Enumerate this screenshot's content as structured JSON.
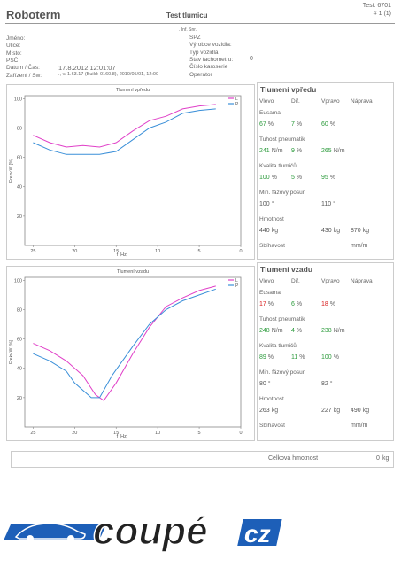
{
  "header": {
    "brand": "Roboterm",
    "title": "Test tlumicu",
    "test": "Test: 6701",
    "page": "# 1 (1)"
  },
  "info": {
    "left": [
      {
        "label": "Jméno:",
        "value": ""
      },
      {
        "label": "Ulice:",
        "value": ""
      },
      {
        "label": "Místo:",
        "value": ""
      },
      {
        "label": "PSČ",
        "value": ""
      },
      {
        "label": "Datum / Čas:",
        "value": "17.8.2012 12:01:07"
      },
      {
        "label": "Zařízení / Sw:",
        "value": "., v. 1.63.17 (Build: 0160.8), 2010/05/01, 12:00"
      }
    ],
    "note": ". Inf. Snr.",
    "right": [
      {
        "label": "SPZ",
        "value": ""
      },
      {
        "label": "Výrobce vozidla:",
        "value": ""
      },
      {
        "label": "Typ vozidla",
        "value": ""
      },
      {
        "label": "Stav tachometru:",
        "value": 0
      },
      {
        "label": "Číslo karoserie",
        "value": ""
      },
      {
        "label": "Operátor",
        "value": ""
      }
    ]
  },
  "chart_data": [
    {
      "type": "line",
      "title": "Tlumení vpředu",
      "ylabel": "Frekv.W [%]",
      "xlabel": "f [Hz]",
      "xlim": [
        26,
        0
      ],
      "ylim": [
        0,
        102
      ],
      "xticks": [
        25,
        20,
        15,
        10,
        5,
        0
      ],
      "yticks": [
        20,
        40,
        60,
        80,
        100
      ],
      "series": [
        {
          "name": "L",
          "color": "#e040c8",
          "x": [
            25,
            23,
            21,
            19,
            17,
            15,
            13,
            11,
            9,
            7,
            5,
            3
          ],
          "values": [
            75,
            70,
            67,
            68,
            67,
            70,
            78,
            85,
            88,
            93,
            95,
            96
          ]
        },
        {
          "name": "P",
          "color": "#3a8fd8",
          "x": [
            25,
            23,
            21,
            19,
            17,
            15,
            13,
            11,
            9,
            7,
            5,
            3
          ],
          "values": [
            70,
            65,
            62,
            62,
            62,
            64,
            72,
            80,
            84,
            90,
            92,
            93
          ]
        }
      ]
    },
    {
      "type": "line",
      "title": "Tlumení vzadu",
      "ylabel": "Frekv.W [%]",
      "xlabel": "f [Hz]",
      "xlim": [
        26,
        0
      ],
      "ylim": [
        0,
        102
      ],
      "xticks": [
        25,
        20,
        15,
        10,
        5,
        0
      ],
      "yticks": [
        20,
        40,
        60,
        80,
        100
      ],
      "series": [
        {
          "name": "L",
          "color": "#e040c8",
          "x": [
            25,
            23,
            21,
            19,
            17.5,
            16.5,
            15,
            13,
            11,
            9,
            7,
            5,
            3
          ],
          "values": [
            57,
            52,
            45,
            35,
            22,
            18,
            30,
            50,
            68,
            82,
            88,
            93,
            96
          ]
        },
        {
          "name": "P",
          "color": "#3a8fd8",
          "x": [
            25,
            23,
            21,
            20,
            18,
            17,
            15.5,
            13,
            11,
            9,
            7,
            5,
            3
          ],
          "values": [
            50,
            45,
            38,
            30,
            20,
            20,
            35,
            55,
            70,
            80,
            86,
            90,
            94
          ]
        }
      ]
    }
  ],
  "panels": [
    {
      "title": "Tlumení vpředu",
      "columns": [
        "Vlevo",
        "Dif.",
        "Vpravo",
        "Náprava"
      ],
      "rows": [
        {
          "label": "Eusama",
          "cells": [
            {
              "value": 67,
              "unit": "%",
              "color": "#2a9a3a"
            },
            {
              "value": 7,
              "unit": "%",
              "color": "#2a9a3a"
            },
            {
              "value": 60,
              "unit": "%",
              "color": "#2a9a3a"
            },
            null
          ]
        },
        {
          "label": "Tuhost  pneumatik",
          "cells": [
            {
              "value": 241,
              "unit": "N/m",
              "color": "#2a9a3a"
            },
            {
              "value": 9,
              "unit": "%",
              "color": "#2a9a3a"
            },
            {
              "value": 265,
              "unit": "N/m",
              "color": "#2a9a3a"
            },
            null
          ]
        },
        {
          "label": "Kvalita  tlumičů",
          "cells": [
            {
              "value": 100,
              "unit": "%",
              "color": "#2a9a3a"
            },
            {
              "value": 5,
              "unit": "%",
              "color": "#2a9a3a"
            },
            {
              "value": 95,
              "unit": "%",
              "color": "#2a9a3a"
            },
            null
          ]
        },
        {
          "label": "Min. fázový posun",
          "cells": [
            {
              "value": 100,
              "unit": "°",
              "color": "#555555"
            },
            null,
            {
              "value": 110,
              "unit": "°",
              "color": "#555555"
            },
            null
          ]
        },
        {
          "label": "Hmotnost",
          "cells": [
            {
              "value": 440,
              "unit": "kg",
              "color": "#555555"
            },
            null,
            {
              "value": 430,
              "unit": "kg",
              "color": "#555555"
            },
            {
              "value": 870,
              "unit": "kg",
              "color": "#555555"
            }
          ]
        },
        {
          "label": "Sbíhavost",
          "cells": [
            null,
            null,
            null,
            {
              "unit": "mm/m",
              "color": "#555555"
            }
          ]
        }
      ]
    },
    {
      "title": "Tlumení vzadu",
      "columns": [
        "Vlevo",
        "Dif.",
        "Vpravo",
        "Náprava"
      ],
      "rows": [
        {
          "label": "Eusama",
          "cells": [
            {
              "value": 17,
              "unit": "%",
              "color": "#d81818"
            },
            {
              "value": 6,
              "unit": "%",
              "color": "#2a9a3a"
            },
            {
              "value": 18,
              "unit": "%",
              "color": "#d81818"
            },
            null
          ]
        },
        {
          "label": "Tuhost  pneumatik",
          "cells": [
            {
              "value": 248,
              "unit": "N/m",
              "color": "#2a9a3a"
            },
            {
              "value": 4,
              "unit": "%",
              "color": "#2a9a3a"
            },
            {
              "value": 238,
              "unit": "N/m",
              "color": "#2a9a3a"
            },
            null
          ]
        },
        {
          "label": "Kvalita  tlumičů",
          "cells": [
            {
              "value": 89,
              "unit": "%",
              "color": "#2a9a3a"
            },
            {
              "value": 11,
              "unit": "%",
              "color": "#2a9a3a"
            },
            {
              "value": 100,
              "unit": "%",
              "color": "#2a9a3a"
            },
            null
          ]
        },
        {
          "label": "Min. fázový posun",
          "cells": [
            {
              "value": 80,
              "unit": "°",
              "color": "#555555"
            },
            null,
            {
              "value": 82,
              "unit": "°",
              "color": "#555555"
            },
            null
          ]
        },
        {
          "label": "Hmotnost",
          "cells": [
            {
              "value": 263,
              "unit": "kg",
              "color": "#555555"
            },
            null,
            {
              "value": 227,
              "unit": "kg",
              "color": "#555555"
            },
            {
              "value": 490,
              "unit": "kg",
              "color": "#555555"
            }
          ]
        },
        {
          "label": "Sbíhavost",
          "cells": [
            null,
            null,
            null,
            {
              "unit": "mm/m",
              "color": "#555555"
            }
          ]
        }
      ]
    }
  ],
  "total": {
    "label": "Celková hmotnost",
    "value": 0,
    "unit": "kg"
  },
  "logo": {
    "text": "coupé",
    "suffix": "cz"
  }
}
